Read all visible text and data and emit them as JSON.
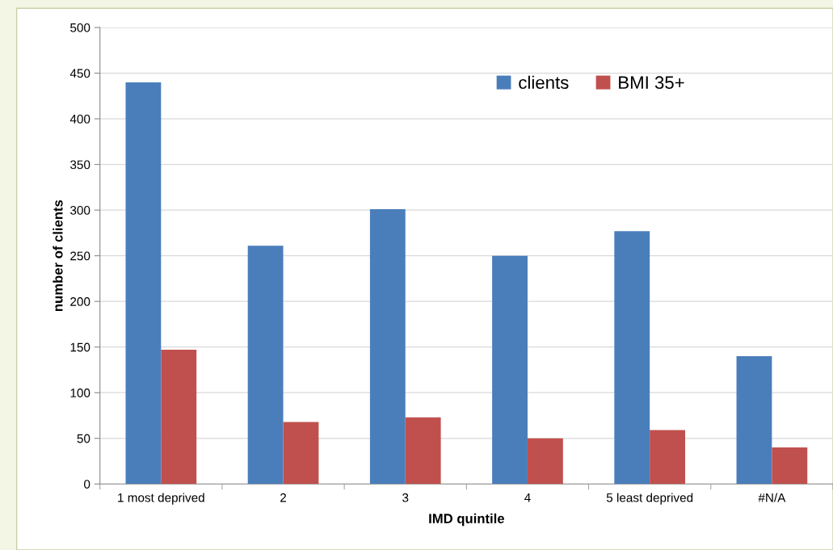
{
  "chart_data": {
    "type": "bar",
    "xlabel": "IMD quintile",
    "ylabel": "number of clients",
    "categories": [
      "1 most deprived",
      "2",
      "3",
      "4",
      "5 least deprived",
      "#N/A"
    ],
    "series": [
      {
        "name": "clients",
        "color": "#4a7ebb",
        "values": [
          440,
          261,
          301,
          250,
          277,
          140
        ]
      },
      {
        "name": "BMI 35+",
        "color": "#c0504d",
        "values": [
          147,
          68,
          73,
          50,
          59,
          40
        ]
      }
    ],
    "ylim": [
      0,
      500
    ],
    "yticks": [
      0,
      50,
      100,
      150,
      200,
      250,
      300,
      350,
      400,
      450,
      500
    ],
    "grid": "y",
    "legend": "top right"
  }
}
